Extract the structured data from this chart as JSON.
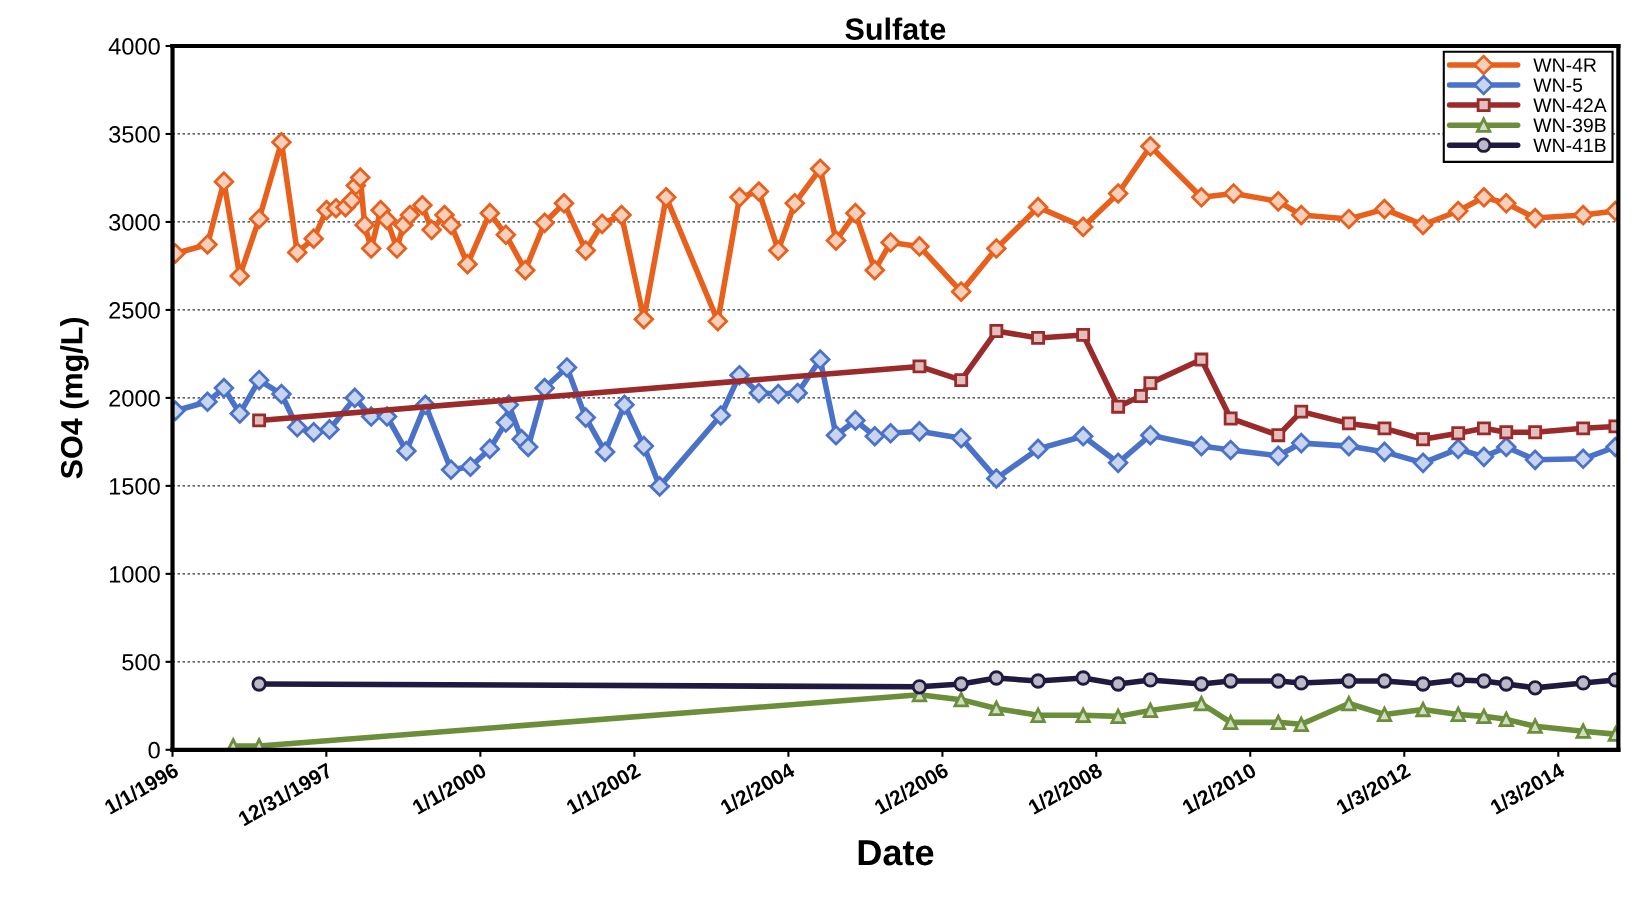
{
  "chart_data": {
    "type": "line",
    "title": "Sulfate",
    "xlabel": "Date",
    "ylabel": "SO4 (mg/L)",
    "xlim": [
      "1996-01-01",
      "2014-10-15"
    ],
    "xticks": [
      {
        "value": "1996-01-01",
        "label": "1/1/1996"
      },
      {
        "value": "1997-12-31",
        "label": "12/31/1997"
      },
      {
        "value": "2000-01-01",
        "label": "1/1/2000"
      },
      {
        "value": "2002-01-01",
        "label": "1/1/2002"
      },
      {
        "value": "2004-01-02",
        "label": "1/2/2004"
      },
      {
        "value": "2006-01-02",
        "label": "1/2/2006"
      },
      {
        "value": "2008-01-02",
        "label": "1/2/2008"
      },
      {
        "value": "2010-01-02",
        "label": "1/2/2010"
      },
      {
        "value": "2012-01-03",
        "label": "1/3/2012"
      },
      {
        "value": "2014-01-03",
        "label": "1/3/2014"
      }
    ],
    "ylim": [
      0,
      4000
    ],
    "yticks": [
      0,
      500,
      1000,
      1500,
      2000,
      2500,
      3000,
      3500,
      4000
    ],
    "grid": "y",
    "legend": "top right",
    "line_style": "solid",
    "series": [
      {
        "name": "WN-4R",
        "color": "#e8601c",
        "marker": "diamond",
        "x": [
          "1996-01-15",
          "1996-06-15",
          "1996-09-01",
          "1996-11-15",
          "1997-02-15",
          "1997-06-01",
          "1997-08-15",
          "1997-11-01",
          "1998-01-01",
          "1998-02-15",
          "1998-04-01",
          "1998-05-01",
          "1998-05-20",
          "1998-06-10",
          "1998-07-01",
          "1998-08-01",
          "1998-09-15",
          "1998-10-15",
          "1998-12-01",
          "1999-01-01",
          "1999-02-01",
          "1999-04-01",
          "1999-05-15",
          "1999-07-15",
          "1999-08-15",
          "1999-11-01",
          "2000-02-15",
          "2000-05-01",
          "2000-08-01",
          "2000-11-01",
          "2001-02-01",
          "2001-05-15",
          "2001-08-01",
          "2001-11-01",
          "2002-02-15",
          "2002-06-01",
          "2003-02-01",
          "2003-05-15",
          "2003-08-15",
          "2003-11-15",
          "2004-02-01",
          "2004-06-01",
          "2004-08-15",
          "2004-11-15",
          "2005-02-15",
          "2005-05-01",
          "2005-09-15",
          "2006-04-01",
          "2006-09-15",
          "2007-04-01",
          "2007-11-01",
          "2008-04-15",
          "2008-09-15",
          "2009-05-15",
          "2009-10-15",
          "2010-05-15",
          "2010-09-01",
          "2011-04-15",
          "2011-10-01",
          "2012-04-01",
          "2012-09-15",
          "2013-01-15",
          "2013-05-01",
          "2013-09-15",
          "2014-05-01",
          "2014-10-01"
        ],
        "values": [
          2821,
          2872,
          3229,
          2693,
          3017,
          3453,
          2827,
          2905,
          3067,
          3078,
          3084,
          3123,
          3207,
          3252,
          2983,
          2849,
          3067,
          3011,
          2849,
          2983,
          3039,
          3095,
          2955,
          3039,
          2983,
          2760,
          3050,
          2927,
          2726,
          2995,
          3106,
          2838,
          2989,
          3039,
          2447,
          3140,
          2436,
          3140,
          3173,
          2838,
          3106,
          3302,
          2894,
          3050,
          2726,
          2883,
          2861,
          2604,
          2849,
          3084,
          2972,
          3162,
          3430,
          3140,
          3162,
          3117,
          3039,
          3017,
          3073,
          2983,
          3062,
          3140,
          3106,
          3022,
          3039,
          3062
        ]
      },
      {
        "name": "WN-5",
        "color": "#4a72c8",
        "marker": "diamond",
        "x": [
          "1996-01-15",
          "1996-06-15",
          "1996-09-01",
          "1996-11-15",
          "1997-02-15",
          "1997-06-01",
          "1997-08-15",
          "1997-11-01",
          "1998-01-15",
          "1998-05-15",
          "1998-08-01",
          "1998-10-15",
          "1999-01-15",
          "1999-04-15",
          "1999-08-15",
          "1999-11-15",
          "2000-02-15",
          "2000-05-01",
          "2000-05-15",
          "2000-07-15",
          "2000-08-15",
          "2000-11-01",
          "2001-02-15",
          "2001-05-15",
          "2001-08-15",
          "2001-11-15",
          "2002-02-15",
          "2002-05-01",
          "2003-02-15",
          "2003-05-15",
          "2003-08-15",
          "2003-11-15",
          "2004-02-15",
          "2004-06-01",
          "2004-08-15",
          "2004-11-15",
          "2005-02-15",
          "2005-05-01",
          "2005-09-15",
          "2006-04-01",
          "2006-09-15",
          "2007-04-01",
          "2007-11-01",
          "2008-04-15",
          "2008-09-15",
          "2009-05-15",
          "2009-10-01",
          "2010-05-15",
          "2010-09-01",
          "2011-04-15",
          "2011-10-01",
          "2012-04-01",
          "2012-09-15",
          "2013-01-15",
          "2013-05-01",
          "2013-09-15",
          "2014-05-01",
          "2014-10-01"
        ],
        "values": [
          1927,
          1978,
          2056,
          1911,
          2101,
          2022,
          1833,
          1805,
          1821,
          2000,
          1894,
          1894,
          1698,
          1961,
          1592,
          1609,
          1710,
          1860,
          1961,
          1765,
          1721,
          2056,
          2173,
          1888,
          1693,
          1961,
          1726,
          1497,
          1900,
          2129,
          2028,
          2022,
          2028,
          2218,
          1788,
          1872,
          1782,
          1799,
          1810,
          1771,
          1542,
          1710,
          1782,
          1631,
          1788,
          1726,
          1704,
          1671,
          1743,
          1726,
          1693,
          1631,
          1710,
          1665,
          1721,
          1648,
          1654,
          1721
        ]
      },
      {
        "name": "WN-42A",
        "color": "#9b2a2a",
        "marker": "square",
        "x": [
          "1997-02-15",
          "2005-09-15",
          "2006-04-01",
          "2006-09-15",
          "2007-04-01",
          "2007-11-01",
          "2008-04-15",
          "2008-08-01",
          "2008-09-15",
          "2009-05-15",
          "2009-10-01",
          "2010-05-15",
          "2010-09-01",
          "2011-04-15",
          "2011-10-01",
          "2012-04-01",
          "2012-09-15",
          "2013-01-15",
          "2013-05-01",
          "2013-09-15",
          "2014-05-01",
          "2014-10-01"
        ],
        "values": [
          1872,
          2179,
          2101,
          2380,
          2341,
          2358,
          1950,
          2011,
          2084,
          2218,
          1883,
          1788,
          1922,
          1855,
          1827,
          1765,
          1799,
          1827,
          1805,
          1805,
          1827,
          1838
        ]
      },
      {
        "name": "WN-39B",
        "color": "#6b8e3a",
        "marker": "triangle",
        "x": [
          "1996-10-15",
          "1997-02-15",
          "2005-09-15",
          "2006-04-01",
          "2006-09-15",
          "2007-04-01",
          "2007-11-01",
          "2008-04-15",
          "2008-09-15",
          "2009-05-15",
          "2009-10-01",
          "2010-05-15",
          "2010-09-01",
          "2011-04-15",
          "2011-10-01",
          "2012-04-01",
          "2012-09-15",
          "2013-01-15",
          "2013-05-01",
          "2013-09-15",
          "2014-05-01",
          "2014-10-01"
        ],
        "values": [
          22,
          22,
          313,
          285,
          235,
          196,
          196,
          190,
          224,
          263,
          156,
          156,
          145,
          263,
          201,
          229,
          201,
          190,
          173,
          134,
          106,
          89
        ]
      },
      {
        "name": "WN-41B",
        "color": "#1f1a40",
        "marker": "circle",
        "x": [
          "1997-02-15",
          "2005-09-15",
          "2006-04-01",
          "2006-09-15",
          "2007-04-01",
          "2007-11-01",
          "2008-04-15",
          "2008-09-15",
          "2009-05-15",
          "2009-10-01",
          "2010-05-15",
          "2010-09-01",
          "2011-04-15",
          "2011-10-01",
          "2012-04-01",
          "2012-09-15",
          "2013-01-15",
          "2013-05-01",
          "2013-09-15",
          "2014-05-01",
          "2014-10-01"
        ],
        "values": [
          374,
          358,
          374,
          408,
          391,
          408,
          374,
          397,
          374,
          391,
          391,
          380,
          391,
          391,
          374,
          397,
          391,
          374,
          352,
          380,
          397
        ]
      }
    ]
  }
}
